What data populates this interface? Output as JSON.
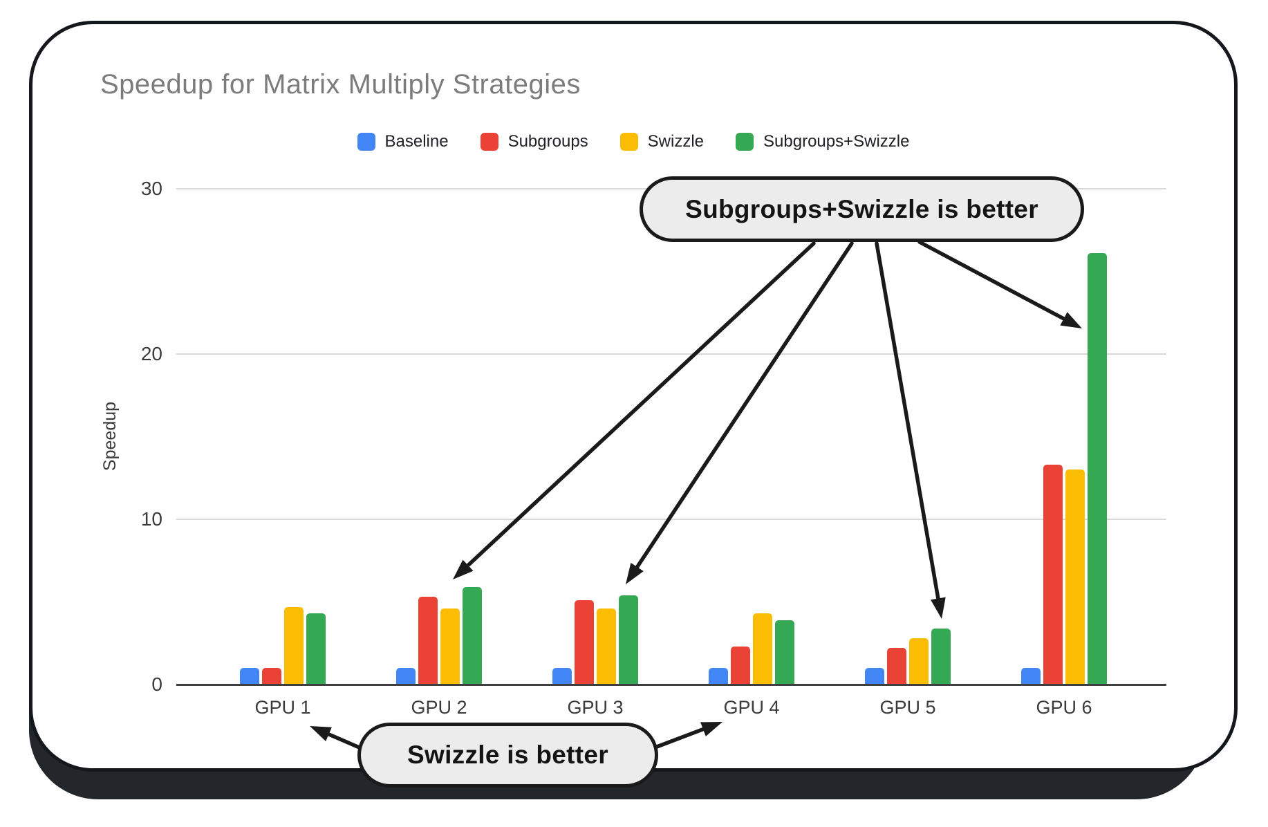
{
  "chart_data": {
    "type": "bar",
    "title": "Speedup for Matrix Multiply Strategies",
    "xlabel": "",
    "ylabel": "Speedup",
    "categories": [
      "GPU 1",
      "GPU 2",
      "GPU 3",
      "GPU 4",
      "GPU 5",
      "GPU 6"
    ],
    "series": [
      {
        "name": "Baseline",
        "color": "#4285F4",
        "values": [
          1.0,
          1.0,
          1.0,
          1.0,
          1.0,
          1.0
        ]
      },
      {
        "name": "Subgroups",
        "color": "#EA4335",
        "values": [
          1.0,
          5.3,
          5.1,
          2.3,
          2.2,
          13.3
        ]
      },
      {
        "name": "Swizzle",
        "color": "#FBBC04",
        "values": [
          4.7,
          4.6,
          4.6,
          4.3,
          2.8,
          13.0
        ]
      },
      {
        "name": "Subgroups+Swizzle",
        "color": "#34A853",
        "values": [
          4.3,
          5.9,
          5.4,
          3.9,
          3.4,
          26.1
        ]
      }
    ],
    "yticks": [
      0,
      10,
      20,
      30
    ],
    "ylim": [
      0,
      30
    ],
    "grid": true,
    "legend_position": "top"
  },
  "callouts": {
    "top": {
      "label": "Subgroups+Swizzle is better",
      "targets": [
        "GPU 2 Subgroups+Swizzle bar",
        "GPU 3 Subgroups+Swizzle bar",
        "GPU 5 Subgroups+Swizzle bar",
        "GPU 6 Subgroups+Swizzle bar"
      ]
    },
    "bottom": {
      "label": "Swizzle is better",
      "targets": [
        "GPU 1",
        "GPU 4"
      ]
    }
  },
  "style_colors": {
    "callout_fill": "#ececec",
    "callout_border": "#1a1a1a",
    "arrow": "#1a1a1a",
    "frame_base": "#23262b",
    "grid": "#d9d9d9",
    "axis": "#3f3f3f",
    "title_text": "#7c7c7c"
  }
}
